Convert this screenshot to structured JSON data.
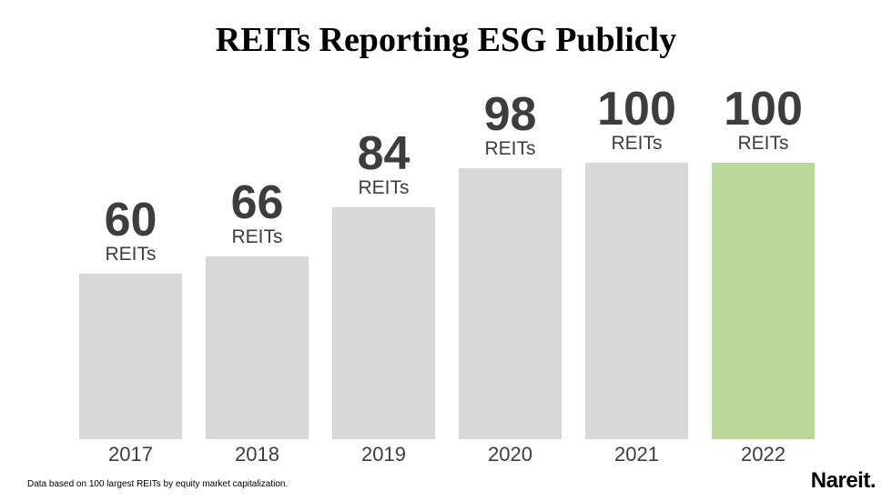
{
  "chart_data": {
    "type": "bar",
    "title": "REITs Reporting ESG Publicly",
    "categories": [
      "2017",
      "2018",
      "2019",
      "2020",
      "2021",
      "2022"
    ],
    "values": [
      60,
      66,
      84,
      98,
      100,
      100
    ],
    "value_unit_label": "REITs",
    "xlabel": "",
    "ylabel": "",
    "ylim": [
      0,
      100
    ],
    "grid": false,
    "legend": "none",
    "bar_color_default": "#d8d8d8",
    "bar_color_highlight": "#b9d89a",
    "highlight_category": "2022",
    "label_color": "#3d3d3d"
  },
  "footnote": "Data based on 100 largest REITs by equity market capitalization.",
  "logo": {
    "text": "Nareit",
    "suffix": "."
  }
}
